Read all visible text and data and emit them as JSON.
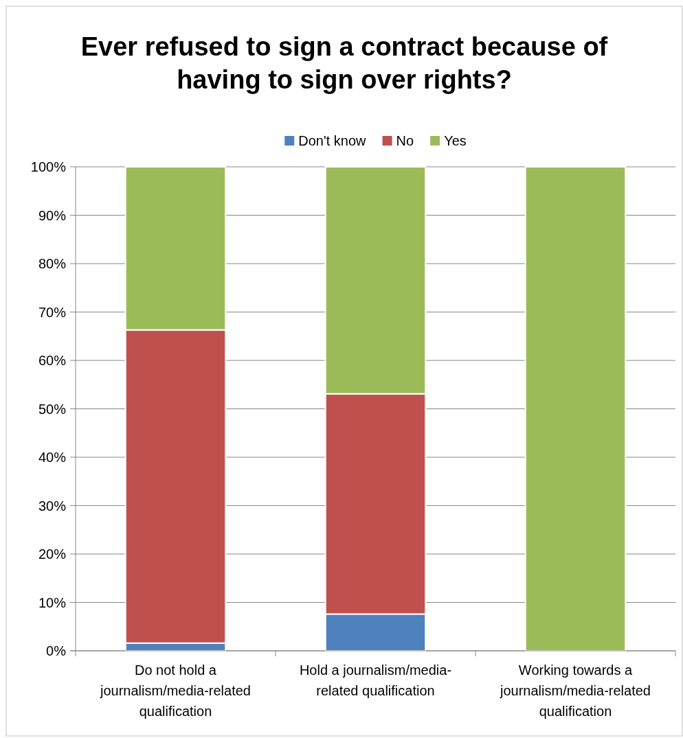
{
  "chart_data": {
    "type": "bar",
    "title": "Ever refused to sign a contract because of having to sign over rights?",
    "categories": [
      "Do not hold a journalism/media-related qualification",
      "Hold a journalism/media-related qualification",
      "Working towards a journalism/media-related qualification"
    ],
    "stacked": true,
    "series": [
      {
        "name": "Don't know",
        "color": "#4f81bd",
        "values": [
          1.6,
          7.6,
          0
        ]
      },
      {
        "name": "No",
        "color": "#c0504d",
        "values": [
          64.7,
          45.5,
          0
        ]
      },
      {
        "name": "Yes",
        "color": "#9bbb59",
        "values": [
          33.7,
          46.9,
          100
        ]
      }
    ],
    "ylim": [
      0,
      100
    ],
    "yticks": [
      {
        "value": 0,
        "label": "0%"
      },
      {
        "value": 10,
        "label": "10%"
      },
      {
        "value": 20,
        "label": "20%"
      },
      {
        "value": 30,
        "label": "30%"
      },
      {
        "value": 40,
        "label": "40%"
      },
      {
        "value": 50,
        "label": "50%"
      },
      {
        "value": 60,
        "label": "60%"
      },
      {
        "value": 70,
        "label": "70%"
      },
      {
        "value": 80,
        "label": "80%"
      },
      {
        "value": 90,
        "label": "90%"
      },
      {
        "value": 100,
        "label": "100%"
      }
    ],
    "grid": "y",
    "legend": "top"
  }
}
